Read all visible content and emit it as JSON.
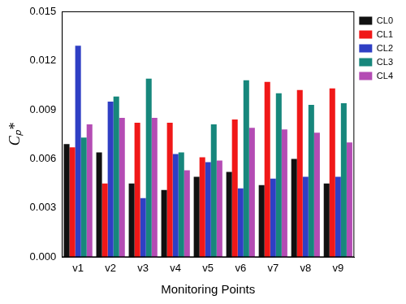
{
  "chart_data": {
    "type": "bar",
    "x_label": "Monitoring Points",
    "y_label": "Cₚ*",
    "categories": [
      "v1",
      "v2",
      "v3",
      "v4",
      "v5",
      "v6",
      "v7",
      "v8",
      "v9"
    ],
    "series": [
      {
        "name": "CL0",
        "color": "#111111",
        "values": [
          0.0069,
          0.0064,
          0.0045,
          0.0041,
          0.0049,
          0.0052,
          0.0044,
          0.006,
          0.0045
        ]
      },
      {
        "name": "CL1",
        "color": "#f01818",
        "values": [
          0.0067,
          0.0045,
          0.0082,
          0.0082,
          0.0061,
          0.0084,
          0.0107,
          0.0102,
          0.0103
        ]
      },
      {
        "name": "CL2",
        "color": "#2f3fc4",
        "values": [
          0.0129,
          0.0095,
          0.0036,
          0.0063,
          0.0058,
          0.0042,
          0.0048,
          0.0049,
          0.0049
        ]
      },
      {
        "name": "CL3",
        "color": "#17877c",
        "values": [
          0.0073,
          0.0098,
          0.0109,
          0.0064,
          0.0081,
          0.0108,
          0.01,
          0.0093,
          0.0094
        ]
      },
      {
        "name": "CL4",
        "color": "#b44cb4",
        "values": [
          0.0081,
          0.0085,
          0.0085,
          0.0053,
          0.0059,
          0.0079,
          0.0078,
          0.0076,
          0.007
        ]
      }
    ],
    "ylim": [
      0,
      0.015
    ],
    "yticks": [
      {
        "value": 0,
        "label": "0.000"
      },
      0.003,
      0.006,
      0.009,
      0.012,
      0.015
    ],
    "grid": false,
    "legend": "upper right"
  }
}
